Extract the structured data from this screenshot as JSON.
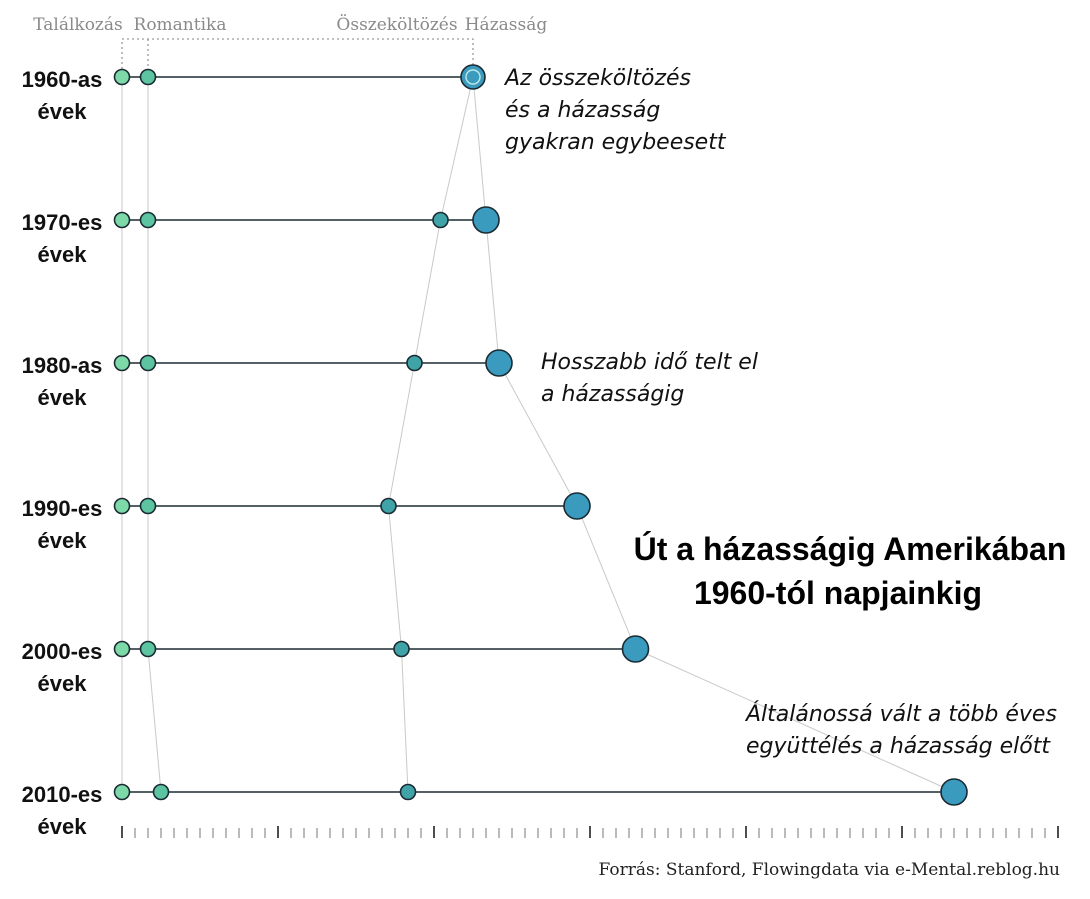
{
  "chart_data": {
    "type": "scatter",
    "title": "Út a házasságig Amerikában 1960-tól napjainkig",
    "title_lines": [
      "Út a házasságig Amerikában",
      "1960-tól napjainkig"
    ],
    "stages": [
      "Találkozás",
      "Romantika",
      "Összeköltözés",
      "Házasság"
    ],
    "rows": [
      {
        "label": [
          "1960-as",
          "évek"
        ],
        "points": [
          0,
          2,
          27,
          27
        ]
      },
      {
        "label": [
          "1970-es",
          "évek"
        ],
        "points": [
          0,
          2,
          24.5,
          28
        ]
      },
      {
        "label": [
          "1980-as",
          "évek"
        ],
        "points": [
          0,
          2,
          22.5,
          29
        ]
      },
      {
        "label": [
          "1990-es",
          "évek"
        ],
        "points": [
          0,
          2,
          20.5,
          35
        ]
      },
      {
        "label": [
          "2000-es",
          "évek"
        ],
        "points": [
          0,
          2,
          21.5,
          39.5
        ]
      },
      {
        "label": [
          "2010-es",
          "évek"
        ],
        "points": [
          0,
          3,
          22,
          64
        ]
      }
    ],
    "xlim": [
      0,
      72
    ],
    "colors": {
      "talalkozas": "#7ed9a8",
      "romantika": "#5cc4a0",
      "osszekoltozes": "#3fa3a8",
      "hazassag": "#3a9bbf",
      "stroke": "#1b2b33"
    },
    "annotations": [
      {
        "lines": [
          "Az összeköltözés",
          "és a házasság",
          "gyakran egybeesett"
        ]
      },
      {
        "lines": [
          "Hosszabb idő telt el",
          "a házasságig"
        ]
      },
      {
        "lines": [
          "Általánossá vált a több éves",
          "együttélés a házasság előtt"
        ]
      }
    ]
  },
  "source": "Forrás: Stanford, Flowingdata via e-Mental.reblog.hu"
}
